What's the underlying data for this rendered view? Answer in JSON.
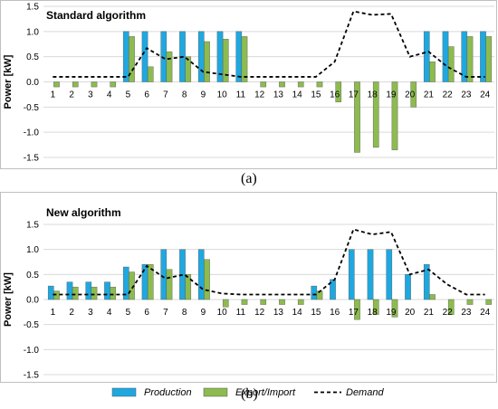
{
  "panels": [
    {
      "label_text": "(a)"
    },
    {
      "label_text": "(b)"
    }
  ],
  "colors": {
    "production": "#1fa8e0",
    "export_import": "#8dbb4f",
    "demand": "#000000",
    "grid": "#d9d9d9"
  },
  "chart_data": [
    {
      "type": "bar",
      "title": "Standard algorithm",
      "ylabel": "Power [kW]",
      "xlabel": "",
      "ylim": [
        -1.5,
        1.5
      ],
      "yticks": [
        "1.5",
        "1.0",
        "0.5",
        "0.0",
        "-0.5",
        "-1.0",
        "-1.5"
      ],
      "ytick_values": [
        1.5,
        1.0,
        0.5,
        0.0,
        -0.5,
        -1.0,
        -1.5
      ],
      "grid": true,
      "categories": [
        "1",
        "2",
        "3",
        "4",
        "5",
        "6",
        "7",
        "8",
        "9",
        "10",
        "11",
        "12",
        "13",
        "14",
        "15",
        "16",
        "17",
        "18",
        "19",
        "20",
        "21",
        "22",
        "23",
        "24"
      ],
      "series": [
        {
          "name": "Production",
          "kind": "bar",
          "values": [
            0,
            0,
            0,
            0,
            1.0,
            1.0,
            1.0,
            1.0,
            1.0,
            1.0,
            1.0,
            0,
            0,
            0,
            0,
            0,
            0,
            0,
            0,
            0,
            1.0,
            1.0,
            1.0,
            1.0
          ]
        },
        {
          "name": "Export/Import",
          "kind": "bar",
          "values": [
            -0.1,
            -0.1,
            -0.1,
            -0.1,
            0.9,
            0.3,
            0.6,
            0.5,
            0.8,
            0.85,
            0.9,
            -0.1,
            -0.1,
            -0.1,
            -0.1,
            -0.4,
            -1.4,
            -1.3,
            -1.35,
            -0.5,
            0.4,
            0.7,
            0.9,
            0.9
          ]
        },
        {
          "name": "Demand",
          "kind": "line",
          "values": [
            0.1,
            0.1,
            0.1,
            0.1,
            0.1,
            0.67,
            0.45,
            0.5,
            0.2,
            0.15,
            0.1,
            0.1,
            0.1,
            0.1,
            0.1,
            0.4,
            1.4,
            1.33,
            1.35,
            0.5,
            0.6,
            0.3,
            0.1,
            0.1
          ]
        }
      ]
    },
    {
      "type": "bar",
      "title": "New algorithm",
      "ylabel": "Power [kW]",
      "xlabel": "",
      "ylim": [
        -1.5,
        1.5
      ],
      "yticks": [
        "1.5",
        "1.0",
        "0.5",
        "0.0",
        "-0.5",
        "-1.0",
        "-1.5"
      ],
      "ytick_values": [
        1.5,
        1.0,
        0.5,
        0.0,
        -0.5,
        -1.0,
        -1.5
      ],
      "grid": true,
      "categories": [
        "1",
        "2",
        "3",
        "4",
        "5",
        "6",
        "7",
        "8",
        "9",
        "10",
        "11",
        "12",
        "13",
        "14",
        "15",
        "16",
        "17",
        "18",
        "19",
        "20",
        "21",
        "22",
        "23",
        "24"
      ],
      "series": [
        {
          "name": "Production",
          "kind": "bar",
          "values": [
            0.27,
            0.35,
            0.35,
            0.35,
            0.65,
            0.7,
            1.0,
            1.0,
            1.0,
            0,
            0,
            0,
            0,
            0,
            0.27,
            0.4,
            1.0,
            1.0,
            1.0,
            0.5,
            0.7,
            0,
            0,
            0
          ]
        },
        {
          "name": "Export/Import",
          "kind": "bar",
          "values": [
            0.17,
            0.25,
            0.25,
            0.25,
            0.55,
            0.7,
            0.6,
            0.5,
            0.8,
            -0.15,
            -0.1,
            -0.1,
            -0.1,
            -0.1,
            0.17,
            0,
            -0.4,
            -0.3,
            -0.35,
            0,
            0.1,
            -0.3,
            -0.1,
            -0.1
          ]
        },
        {
          "name": "Demand",
          "kind": "line",
          "values": [
            0.1,
            0.1,
            0.1,
            0.1,
            0.1,
            0.67,
            0.42,
            0.5,
            0.2,
            0.12,
            0.1,
            0.1,
            0.1,
            0.1,
            0.1,
            0.4,
            1.4,
            1.3,
            1.35,
            0.5,
            0.6,
            0.3,
            0.1,
            0.1
          ]
        }
      ]
    }
  ],
  "legend": [
    {
      "label": "Production",
      "swatch": "bar",
      "color_key": "production"
    },
    {
      "label": "Export/Import",
      "swatch": "bar",
      "color_key": "export_import"
    },
    {
      "label": "Demand",
      "swatch": "dash",
      "color_key": "demand"
    }
  ]
}
